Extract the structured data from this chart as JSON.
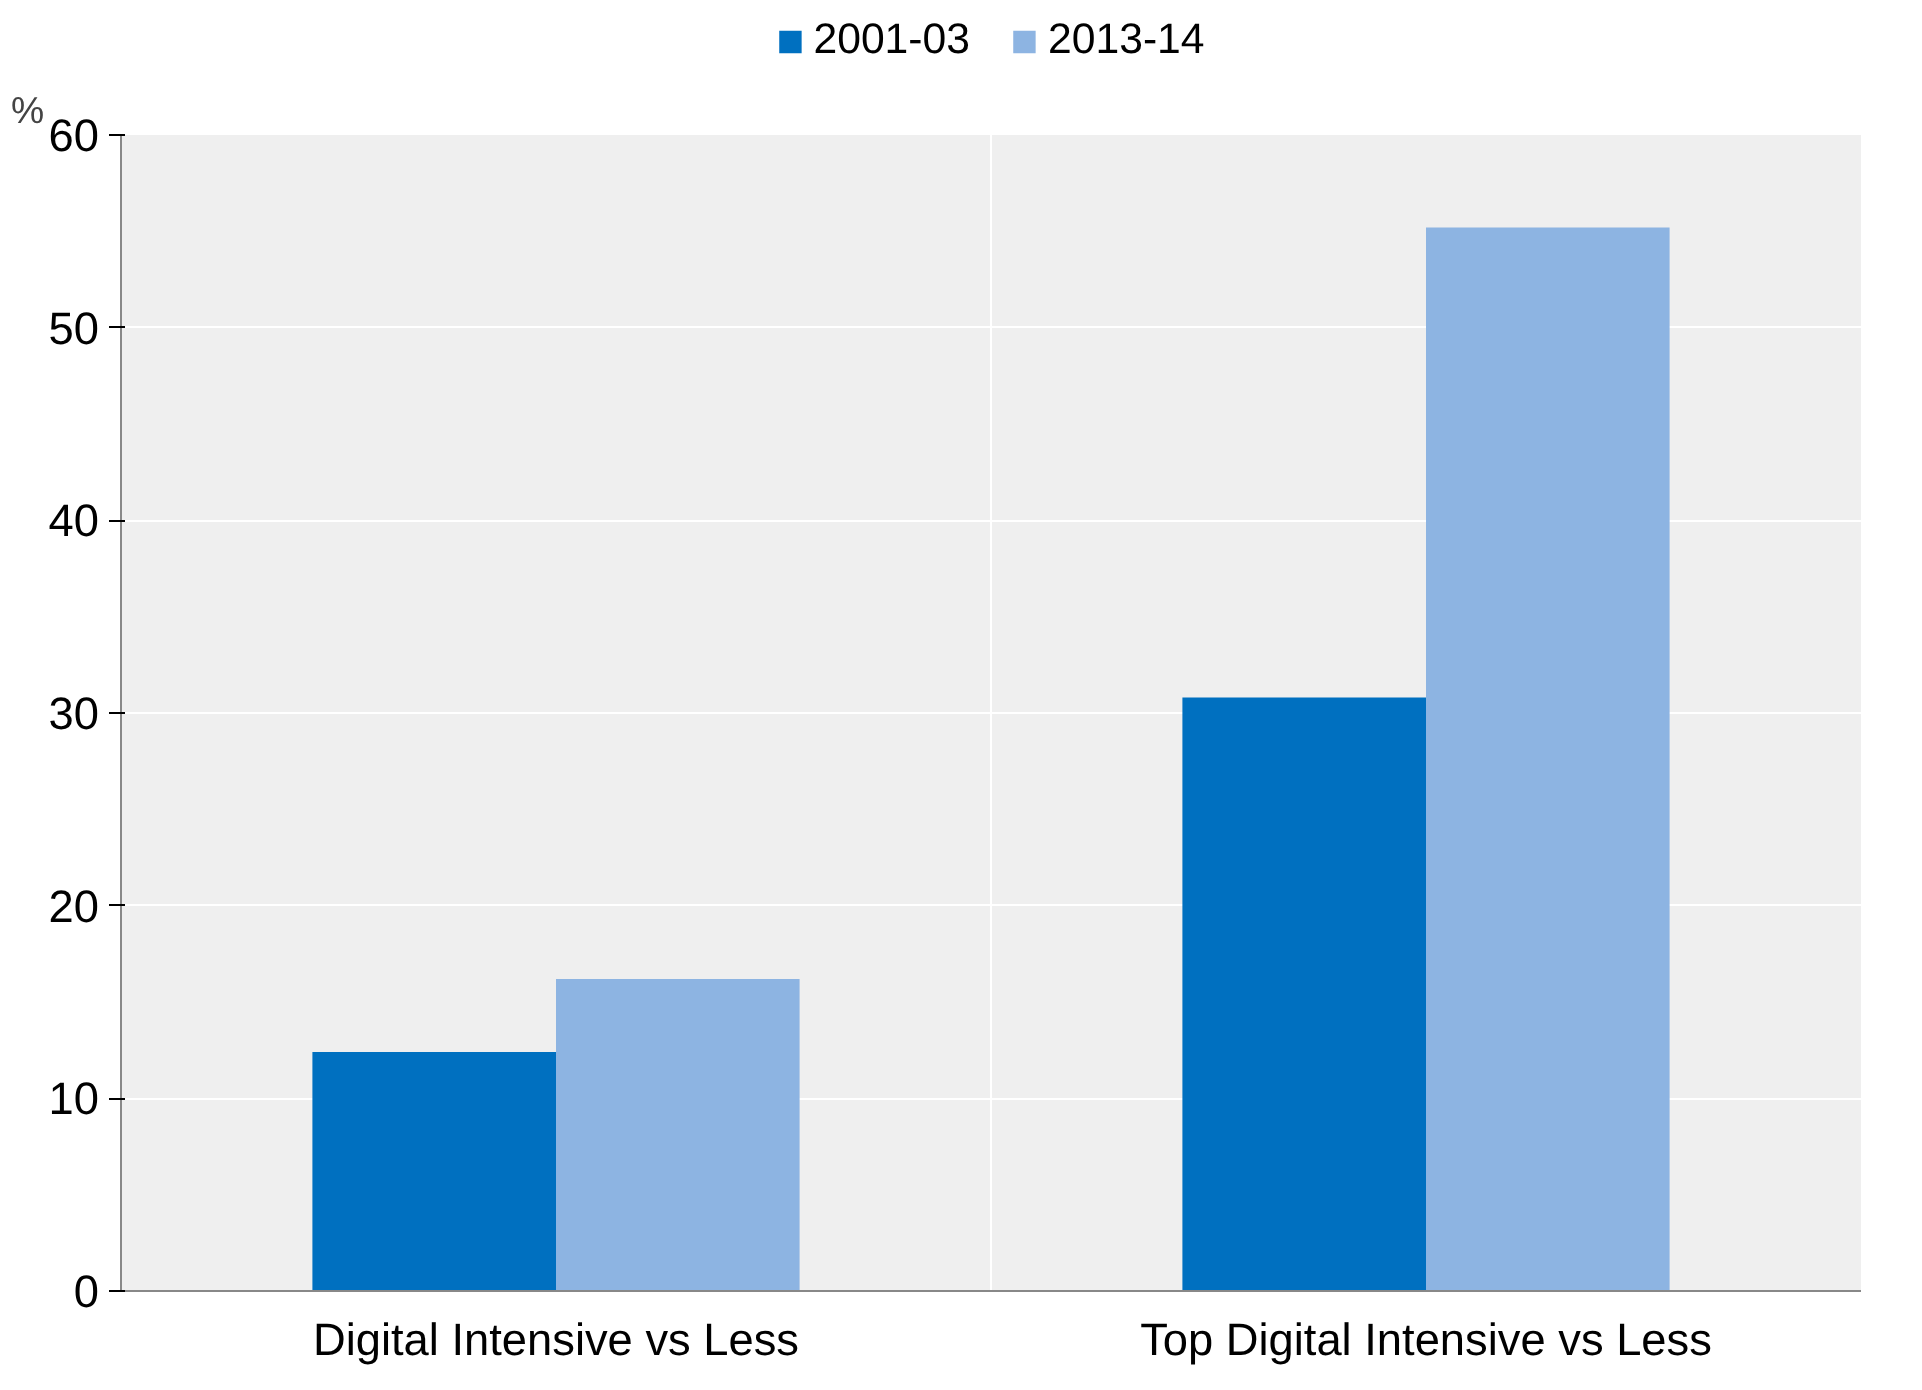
{
  "chart_data": {
    "type": "bar",
    "ylabel": "%",
    "categories": [
      "Digital Intensive vs Less",
      "Top Digital Intensive vs Less"
    ],
    "series": [
      {
        "name": "2001-03",
        "color": "#0070c0",
        "values": [
          12.4,
          30.8
        ]
      },
      {
        "name": "2013-14",
        "color": "#8db4e2",
        "values": [
          16.2,
          55.2
        ]
      }
    ],
    "ylim": [
      0,
      60
    ],
    "yticks": [
      0,
      10,
      20,
      30,
      40,
      50,
      60
    ],
    "grid": true,
    "legend": "top"
  }
}
